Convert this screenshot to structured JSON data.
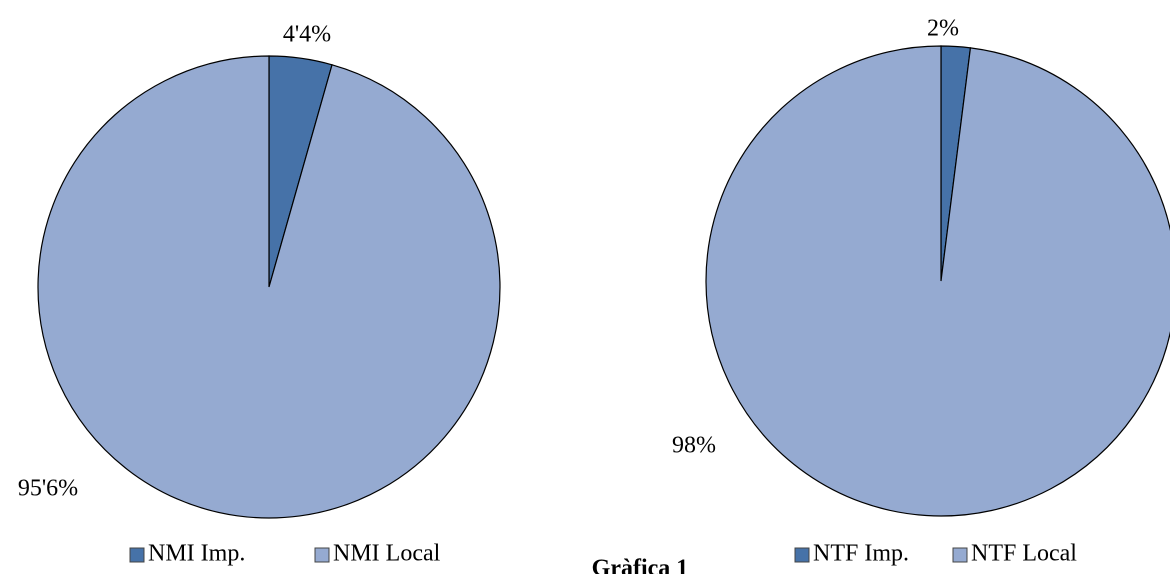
{
  "chart_data": [
    {
      "type": "pie",
      "categories": [
        "NMI Imp.",
        "NMI Local"
      ],
      "values": [
        4.4,
        95.6
      ],
      "value_labels": [
        "4'4%",
        "95'6%"
      ],
      "colors": [
        "#4672a8",
        "#95aad1"
      ]
    },
    {
      "type": "pie",
      "categories": [
        "NTF Imp.",
        "NTF Local"
      ],
      "values": [
        2,
        98
      ],
      "value_labels": [
        "2%",
        "98%"
      ],
      "colors": [
        "#4672a8",
        "#95aad1"
      ]
    }
  ],
  "caption": "Gràfica 1"
}
